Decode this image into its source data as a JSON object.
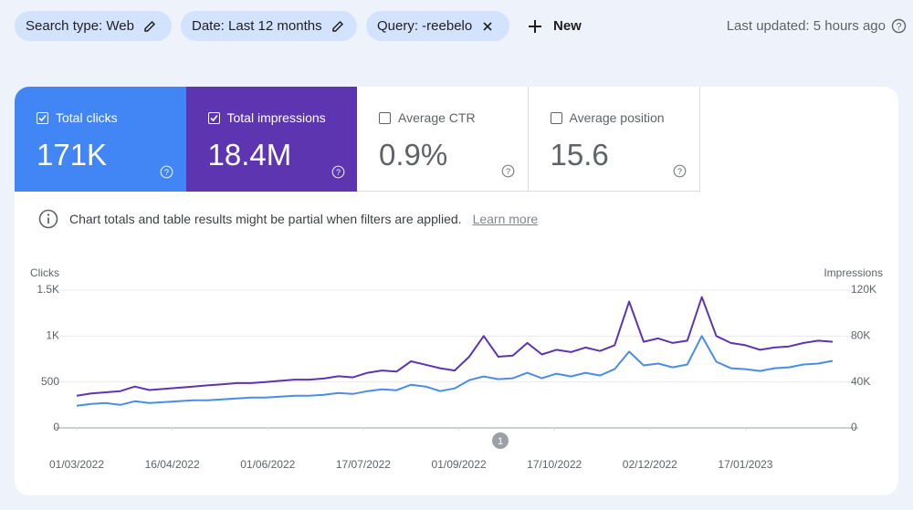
{
  "filters": [
    {
      "label": "Search type: Web",
      "icon": "edit"
    },
    {
      "label": "Date: Last 12 months",
      "icon": "edit"
    },
    {
      "label": "Query: -reebelo",
      "icon": "close"
    }
  ],
  "new_button": "New",
  "last_updated": "Last updated: 5 hours ago",
  "cards": [
    {
      "label": "Total clicks",
      "value": "171K",
      "checked": true,
      "color": "#4285f4"
    },
    {
      "label": "Total impressions",
      "value": "18.4M",
      "checked": true,
      "color": "#5e35b1"
    },
    {
      "label": "Average CTR",
      "value": "0.9%",
      "checked": false,
      "color": "#ffffff"
    },
    {
      "label": "Average position",
      "value": "15.6",
      "checked": false,
      "color": "#ffffff"
    }
  ],
  "notice": {
    "text": "Chart totals and table results might be partial when filters are applied.",
    "link": "Learn more"
  },
  "annotation": "1",
  "chart_data": {
    "type": "line",
    "y_label": "Clicks",
    "y2_label": "Impressions",
    "x": [
      "01/03/2022",
      "08/03/2022",
      "15/03/2022",
      "22/03/2022",
      "29/03/2022",
      "05/04/2022",
      "12/04/2022",
      "19/04/2022",
      "26/04/2022",
      "03/05/2022",
      "10/05/2022",
      "17/05/2022",
      "24/05/2022",
      "31/05/2022",
      "07/06/2022",
      "14/06/2022",
      "21/06/2022",
      "28/06/2022",
      "05/07/2022",
      "12/07/2022",
      "19/07/2022",
      "26/07/2022",
      "02/08/2022",
      "09/08/2022",
      "16/08/2022",
      "23/08/2022",
      "30/08/2022",
      "06/09/2022",
      "13/09/2022",
      "20/09/2022",
      "27/09/2022",
      "04/10/2022",
      "11/10/2022",
      "18/10/2022",
      "25/10/2022",
      "01/11/2022",
      "08/11/2022",
      "15/11/2022",
      "22/11/2022",
      "29/11/2022",
      "06/12/2022",
      "13/12/2022",
      "20/12/2022",
      "27/12/2022",
      "03/01/2023",
      "10/01/2023",
      "17/01/2023",
      "24/01/2023",
      "31/01/2023",
      "07/02/2023",
      "14/02/2023",
      "21/02/2023",
      "28/02/2023"
    ],
    "xlim": [
      "01/03/2022",
      "28/02/2023"
    ],
    "xticks": [
      "01/03/2022",
      "16/04/2022",
      "01/06/2022",
      "17/07/2022",
      "01/09/2022",
      "17/10/2022",
      "02/12/2022",
      "17/01/2023"
    ],
    "series": [
      {
        "color": "#4a8de6",
        "axis": "y",
        "values": [
          240,
          260,
          270,
          250,
          290,
          270,
          280,
          290,
          300,
          300,
          310,
          320,
          330,
          330,
          340,
          350,
          350,
          360,
          380,
          370,
          400,
          420,
          410,
          470,
          450,
          400,
          430,
          520,
          560,
          530,
          540,
          600,
          540,
          590,
          560,
          600,
          570,
          640,
          830,
          680,
          700,
          660,
          690,
          1000,
          720,
          650,
          640,
          620,
          650,
          660,
          690,
          700,
          730
        ]
      },
      {
        "color": "#5e35b1",
        "axis": "y2",
        "values": [
          28000,
          30000,
          31000,
          32000,
          36000,
          33000,
          34000,
          35000,
          36000,
          37000,
          38000,
          39000,
          39000,
          40000,
          41000,
          42000,
          42000,
          43000,
          45000,
          44000,
          48000,
          50000,
          49000,
          58000,
          55000,
          52000,
          50000,
          62000,
          80000,
          62000,
          63000,
          74000,
          64000,
          68000,
          66000,
          70000,
          67000,
          72000,
          110000,
          75000,
          78000,
          74000,
          76000,
          114000,
          80000,
          74000,
          72000,
          68000,
          70000,
          71000,
          74000,
          76000,
          75000
        ]
      }
    ],
    "ylim": [
      0,
      1500
    ],
    "yticks": [
      0,
      500,
      {
        "value": 1000,
        "label": "1K"
      },
      {
        "value": 1500,
        "label": "1.5K"
      }
    ],
    "y2lim": [
      0,
      120000
    ],
    "y2ticks": [
      0,
      {
        "value": 40000,
        "label": "40K"
      },
      {
        "value": 80000,
        "label": "80K"
      },
      {
        "value": 120000,
        "label": "120K"
      }
    ],
    "grid": true
  }
}
